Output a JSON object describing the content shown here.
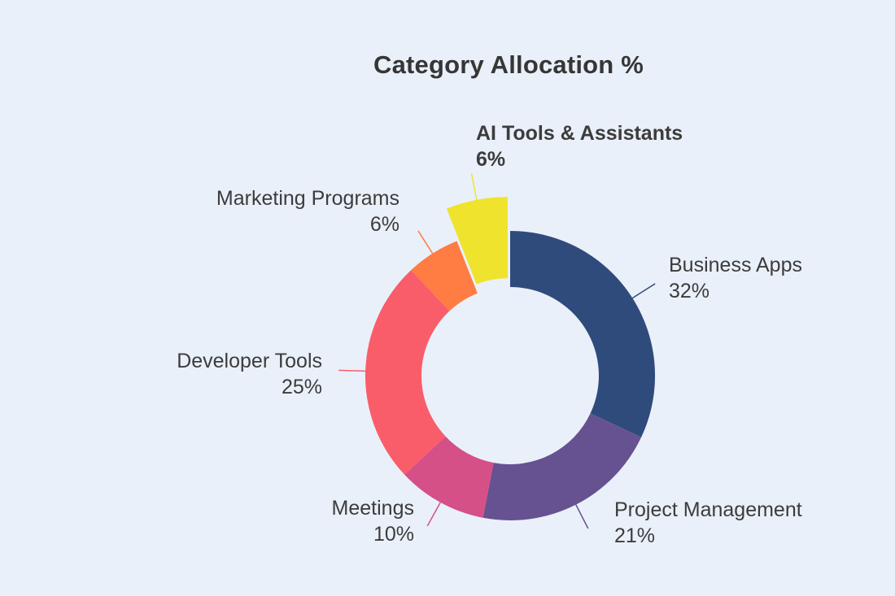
{
  "title": "Category Allocation %",
  "background_color": "#eaf0f9",
  "text_color": "#3c3c3c",
  "title_color": "#363636",
  "chart_data": {
    "type": "pie",
    "subtype": "donut",
    "title": "Category Allocation %",
    "hole_ratio": 0.61,
    "rotation_deg": 0,
    "direction": "clockwise",
    "legend": "none",
    "label_style": "outside labels with colored leader lines, name and percent on two lines",
    "slices": [
      {
        "label": "Business Apps",
        "value": 32,
        "pct_text": "32%",
        "color": "#2f4b7c",
        "pulled": false
      },
      {
        "label": "Project Management",
        "value": 21,
        "pct_text": "21%",
        "color": "#665191",
        "pulled": false
      },
      {
        "label": "Meetings",
        "value": 10,
        "pct_text": "10%",
        "color": "#d45087",
        "pulled": false
      },
      {
        "label": "Developer Tools",
        "value": 25,
        "pct_text": "25%",
        "color": "#f95d6a",
        "pulled": false
      },
      {
        "label": "Marketing Programs",
        "value": 6,
        "pct_text": "6%",
        "color": "#ff7c43",
        "pulled": false
      },
      {
        "label": "AI Tools & Assistants",
        "value": 6,
        "pct_text": "6%",
        "color": "#efe32e",
        "pulled": true
      }
    ]
  }
}
